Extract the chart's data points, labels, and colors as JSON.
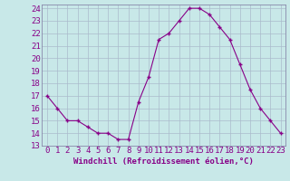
{
  "x": [
    0,
    1,
    2,
    3,
    4,
    5,
    6,
    7,
    8,
    9,
    10,
    11,
    12,
    13,
    14,
    15,
    16,
    17,
    18,
    19,
    20,
    21,
    22,
    23
  ],
  "y": [
    17,
    16,
    15,
    15,
    14.5,
    14,
    14,
    13.5,
    13.5,
    16.5,
    18.5,
    21.5,
    22,
    23,
    24,
    24,
    23.5,
    22.5,
    21.5,
    19.5,
    17.5,
    16,
    15,
    14
  ],
  "line_color": "#880088",
  "bg_color": "#c8e8e8",
  "grid_color": "#aabbcc",
  "spine_color": "#8888aa",
  "xlabel": "Windchill (Refroidissement éolien,°C)",
  "ylim_min": 13,
  "ylim_max": 24,
  "xlim_min": -0.5,
  "xlim_max": 23.5,
  "yticks": [
    13,
    14,
    15,
    16,
    17,
    18,
    19,
    20,
    21,
    22,
    23,
    24
  ],
  "xticks": [
    0,
    1,
    2,
    3,
    4,
    5,
    6,
    7,
    8,
    9,
    10,
    11,
    12,
    13,
    14,
    15,
    16,
    17,
    18,
    19,
    20,
    21,
    22,
    23
  ],
  "tick_fontsize": 6.5,
  "xlabel_fontsize": 6.5
}
